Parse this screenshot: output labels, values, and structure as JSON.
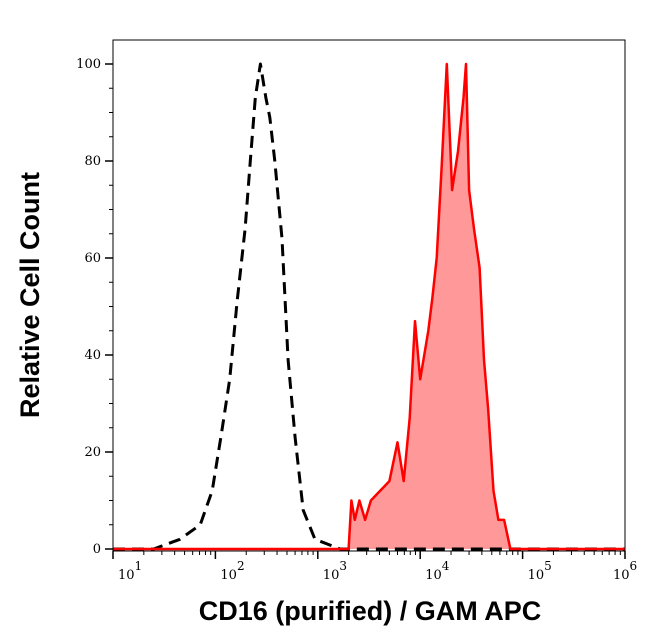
{
  "chart_data": {
    "type": "line",
    "title": "",
    "xlabel": "CD16 (purified) / GAM APC",
    "ylabel": "Relative Cell Count",
    "xscale": "log",
    "xlim": [
      10,
      1000000
    ],
    "ylim": [
      0,
      105
    ],
    "x_ticks": [
      {
        "base": "10",
        "exp": "1"
      },
      {
        "base": "10",
        "exp": "2"
      },
      {
        "base": "10",
        "exp": "3"
      },
      {
        "base": "10",
        "exp": "4"
      },
      {
        "base": "10",
        "exp": "5"
      },
      {
        "base": "10",
        "exp": "6"
      }
    ],
    "y_ticks": [
      "0",
      "20",
      "40",
      "60",
      "80",
      "100"
    ],
    "grid": false,
    "series": [
      {
        "style": "dashed",
        "color": "#000000",
        "filled": false,
        "x": [
          10,
          25,
          45,
          71,
          93,
          115,
          138,
          163,
          195,
          219,
          245,
          275,
          311,
          340,
          380,
          447,
          513,
          600,
          720,
          940,
          1660,
          1000000
        ],
        "y": [
          0,
          0,
          2,
          5,
          12,
          24,
          35,
          51,
          66,
          80,
          93,
          100,
          93,
          89,
          80,
          64,
          39,
          23,
          8,
          2,
          0,
          0
        ]
      },
      {
        "style": "solid",
        "color": "#ff0000",
        "fill": "#ff9999",
        "filled": true,
        "x": [
          10,
          2000,
          2130,
          2300,
          2550,
          2900,
          3300,
          5000,
          6000,
          6900,
          7900,
          8900,
          10000,
          12000,
          13200,
          14500,
          16200,
          18200,
          20500,
          23400,
          26500,
          28000,
          30000,
          33500,
          38000,
          42000,
          46000,
          52000,
          58000,
          66000,
          76000,
          1000000
        ],
        "y": [
          0,
          0,
          10,
          6,
          10,
          6,
          10,
          14,
          22,
          14,
          27,
          47,
          35,
          45,
          52,
          60,
          79,
          100,
          74,
          82,
          93,
          100,
          74,
          66,
          58,
          39,
          29,
          12,
          6,
          6,
          0,
          0
        ]
      }
    ]
  }
}
